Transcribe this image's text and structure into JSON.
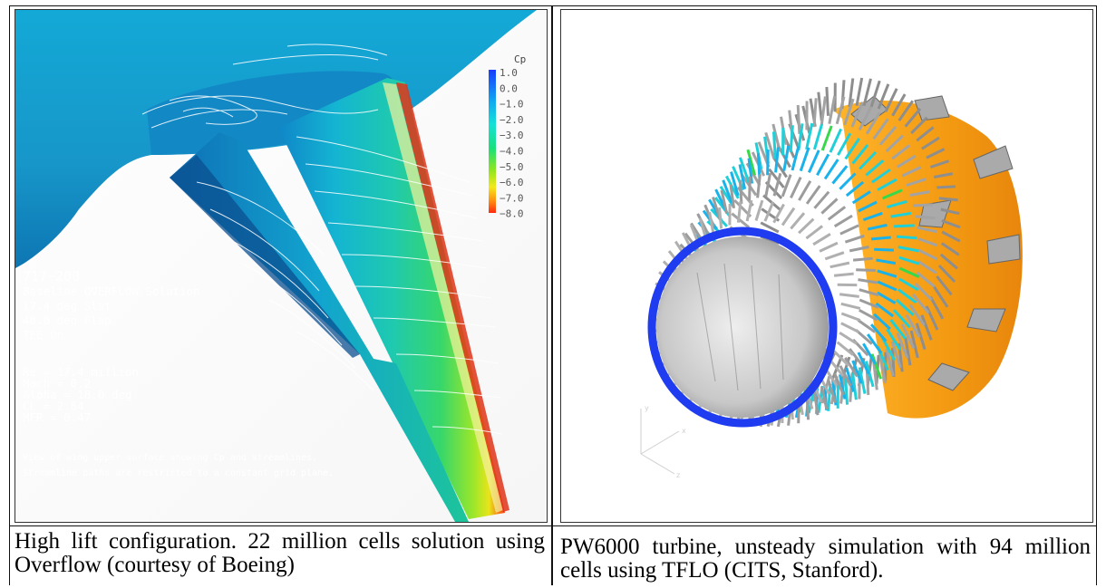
{
  "left_panel": {
    "legend": {
      "title": "Cp",
      "ticks": [
        "1.0",
        "0.0",
        "−1.0",
        "−2.0",
        "−3.0",
        "−4.0",
        "−5.0",
        "−6.0",
        "−7.0",
        "−8.0"
      ]
    },
    "info_lines": [
      "717−200",
      "Baseline OVERFLOW Solution",
      "17.4 deg Slat",
      "40.0 deg Flap",
      "TEE On"
    ],
    "param_lines": [
      "Re = 17.4 million",
      "Mach = 0.2",
      "Alpha = 18.0 deg",
      "CL = 2.64",
      "MFR = 0.47"
    ],
    "note_lines": [
      "View of wing upper surface showing Cp and streamlines.",
      "Streamline paths are restricted to a constant grid plane."
    ]
  },
  "right_panel": {
    "axis_labels": [
      "y",
      "x",
      "z"
    ]
  },
  "captions": {
    "left": "High lift configuration. 22 million cells solution using Overflow (courtesy of Boeing)",
    "right": "PW6000 turbine, unsteady simulation with 94 million cells using TFLO (CITS, Stanford)."
  },
  "colors": {
    "cp_high": "#1a3cff",
    "cp_mid": "#19e07a",
    "cp_low": "#ff2a10",
    "turbine_orange": "#f3a61a",
    "turbine_blue": "#1f3cf0",
    "turbine_grey": "#9a9a9a"
  }
}
